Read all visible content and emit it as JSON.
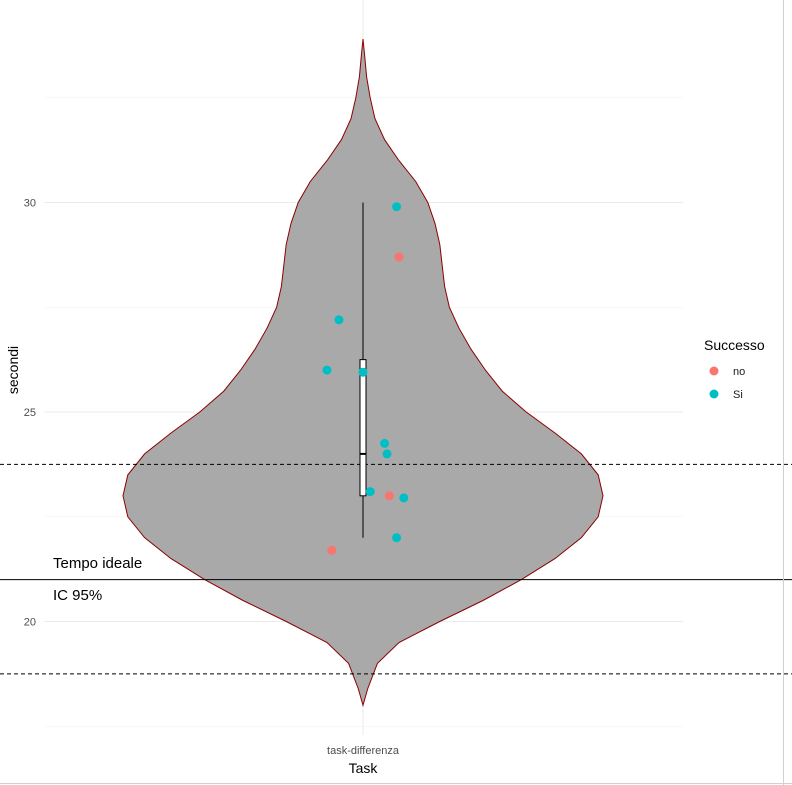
{
  "chart_data": {
    "type": "violin",
    "xlabel": "Task",
    "ylabel": "secondi",
    "categories": [
      "task-differenza"
    ],
    "ylim": [
      17.5,
      34.0
    ],
    "y_ticks": [
      20,
      25,
      30
    ],
    "grid": true,
    "violin": {
      "color_fill": "#a9a9a9",
      "color_outline": "#8b0000",
      "y_min": 18.0,
      "y_max": 33.9,
      "profile": [
        {
          "y": 18.0,
          "w": 0.0
        },
        {
          "y": 18.4,
          "w": 0.02
        },
        {
          "y": 19.0,
          "w": 0.06
        },
        {
          "y": 19.5,
          "w": 0.15
        },
        {
          "y": 20.0,
          "w": 0.32
        },
        {
          "y": 20.5,
          "w": 0.5
        },
        {
          "y": 21.0,
          "w": 0.66
        },
        {
          "y": 21.5,
          "w": 0.8
        },
        {
          "y": 22.0,
          "w": 0.91
        },
        {
          "y": 22.5,
          "w": 0.98
        },
        {
          "y": 23.0,
          "w": 1.0
        },
        {
          "y": 23.5,
          "w": 0.98
        },
        {
          "y": 24.0,
          "w": 0.91
        },
        {
          "y": 24.5,
          "w": 0.8
        },
        {
          "y": 25.0,
          "w": 0.68
        },
        {
          "y": 25.5,
          "w": 0.58
        },
        {
          "y": 26.0,
          "w": 0.51
        },
        {
          "y": 26.5,
          "w": 0.45
        },
        {
          "y": 27.0,
          "w": 0.4
        },
        {
          "y": 27.5,
          "w": 0.36
        },
        {
          "y": 28.0,
          "w": 0.34
        },
        {
          "y": 28.5,
          "w": 0.33
        },
        {
          "y": 29.0,
          "w": 0.32
        },
        {
          "y": 29.5,
          "w": 0.3
        },
        {
          "y": 30.0,
          "w": 0.27
        },
        {
          "y": 30.5,
          "w": 0.22
        },
        {
          "y": 31.0,
          "w": 0.15
        },
        {
          "y": 31.5,
          "w": 0.09
        },
        {
          "y": 32.0,
          "w": 0.05
        },
        {
          "y": 32.5,
          "w": 0.03
        },
        {
          "y": 33.0,
          "w": 0.015
        },
        {
          "y": 33.5,
          "w": 0.007
        },
        {
          "y": 33.9,
          "w": 0.0
        }
      ]
    },
    "boxplot": {
      "min": 22.0,
      "q1": 23.0,
      "median": 24.0,
      "q3": 26.25,
      "max": 30.0
    },
    "points": [
      {
        "x_offset": 0.07,
        "y": 29.9,
        "group": "Si"
      },
      {
        "x_offset": 0.075,
        "y": 28.7,
        "group": "no"
      },
      {
        "x_offset": -0.05,
        "y": 27.2,
        "group": "Si"
      },
      {
        "x_offset": -0.075,
        "y": 26.0,
        "group": "Si"
      },
      {
        "x_offset": 0.0,
        "y": 25.95,
        "group": "Si"
      },
      {
        "x_offset": 0.045,
        "y": 24.25,
        "group": "Si"
      },
      {
        "x_offset": 0.05,
        "y": 24.0,
        "group": "Si"
      },
      {
        "x_offset": 0.015,
        "y": 23.1,
        "group": "Si"
      },
      {
        "x_offset": 0.055,
        "y": 23.0,
        "group": "no"
      },
      {
        "x_offset": 0.085,
        "y": 22.95,
        "group": "Si"
      },
      {
        "x_offset": 0.07,
        "y": 22.0,
        "group": "Si"
      },
      {
        "x_offset": -0.065,
        "y": 21.7,
        "group": "no"
      }
    ],
    "reference_lines": [
      {
        "y": 23.75,
        "style": "dashed"
      },
      {
        "y": 21.0,
        "style": "solid"
      },
      {
        "y": 18.75,
        "style": "dashed"
      }
    ],
    "annotations": [
      "Tempo ideale",
      "IC 95%"
    ],
    "legend": {
      "title": "Successo",
      "placement": "right",
      "entries": [
        {
          "label": "no",
          "color": "#f8766d"
        },
        {
          "label": "Si",
          "color": "#00bfc4"
        }
      ]
    }
  }
}
